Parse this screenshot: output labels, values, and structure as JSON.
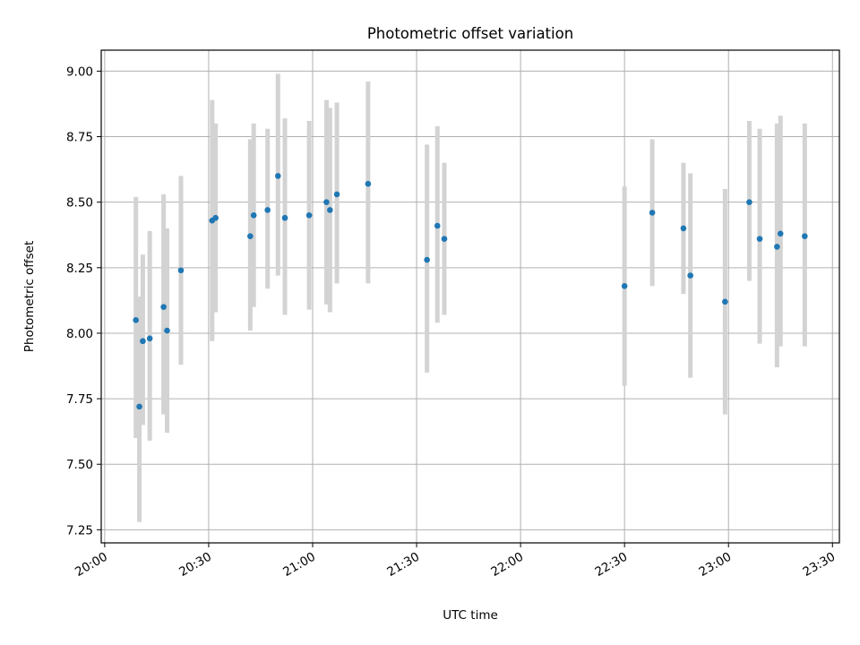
{
  "chart_data": {
    "type": "scatter",
    "title": "Photometric offset variation",
    "xlabel": "UTC time",
    "ylabel": "Photometric offset",
    "x_ticks": [
      "20:00",
      "20:30",
      "21:00",
      "21:30",
      "22:00",
      "22:30",
      "23:00",
      "23:30"
    ],
    "y_ticks": [
      "7.25",
      "7.50",
      "7.75",
      "8.00",
      "8.25",
      "8.50",
      "8.75",
      "9.00"
    ],
    "xlim": [
      "19:59",
      "23:32"
    ],
    "ylim": [
      7.2,
      9.08
    ],
    "grid": true,
    "marker_color": "#1f77b4",
    "errorbar_color": "#d3d3d3",
    "points": [
      {
        "t": "20:09",
        "y": 8.05,
        "lo": 7.6,
        "hi": 8.52
      },
      {
        "t": "20:10",
        "y": 7.72,
        "lo": 7.28,
        "hi": 8.14
      },
      {
        "t": "20:11",
        "y": 7.97,
        "lo": 7.65,
        "hi": 8.3
      },
      {
        "t": "20:13",
        "y": 7.98,
        "lo": 7.59,
        "hi": 8.39
      },
      {
        "t": "20:17",
        "y": 8.1,
        "lo": 7.69,
        "hi": 8.53
      },
      {
        "t": "20:18",
        "y": 8.01,
        "lo": 7.62,
        "hi": 8.4
      },
      {
        "t": "20:22",
        "y": 8.24,
        "lo": 7.88,
        "hi": 8.6
      },
      {
        "t": "20:31",
        "y": 8.43,
        "lo": 7.97,
        "hi": 8.89
      },
      {
        "t": "20:32",
        "y": 8.44,
        "lo": 8.08,
        "hi": 8.8
      },
      {
        "t": "20:42",
        "y": 8.37,
        "lo": 8.01,
        "hi": 8.74
      },
      {
        "t": "20:43",
        "y": 8.45,
        "lo": 8.1,
        "hi": 8.8
      },
      {
        "t": "20:47",
        "y": 8.47,
        "lo": 8.17,
        "hi": 8.78
      },
      {
        "t": "20:50",
        "y": 8.6,
        "lo": 8.22,
        "hi": 8.99
      },
      {
        "t": "20:52",
        "y": 8.44,
        "lo": 8.07,
        "hi": 8.82
      },
      {
        "t": "20:59",
        "y": 8.45,
        "lo": 8.09,
        "hi": 8.81
      },
      {
        "t": "21:04",
        "y": 8.5,
        "lo": 8.11,
        "hi": 8.89
      },
      {
        "t": "21:05",
        "y": 8.47,
        "lo": 8.08,
        "hi": 8.86
      },
      {
        "t": "21:07",
        "y": 8.53,
        "lo": 8.19,
        "hi": 8.88
      },
      {
        "t": "21:16",
        "y": 8.57,
        "lo": 8.19,
        "hi": 8.96
      },
      {
        "t": "21:33",
        "y": 8.28,
        "lo": 7.85,
        "hi": 8.72
      },
      {
        "t": "21:36",
        "y": 8.41,
        "lo": 8.04,
        "hi": 8.79
      },
      {
        "t": "21:38",
        "y": 8.36,
        "lo": 8.07,
        "hi": 8.65
      },
      {
        "t": "22:30",
        "y": 8.18,
        "lo": 7.8,
        "hi": 8.56
      },
      {
        "t": "22:38",
        "y": 8.46,
        "lo": 8.18,
        "hi": 8.74
      },
      {
        "t": "22:47",
        "y": 8.4,
        "lo": 8.15,
        "hi": 8.65
      },
      {
        "t": "22:49",
        "y": 8.22,
        "lo": 7.83,
        "hi": 8.61
      },
      {
        "t": "22:59",
        "y": 8.12,
        "lo": 7.69,
        "hi": 8.55
      },
      {
        "t": "23:06",
        "y": 8.5,
        "lo": 8.2,
        "hi": 8.81
      },
      {
        "t": "23:09",
        "y": 8.36,
        "lo": 7.96,
        "hi": 8.78
      },
      {
        "t": "23:14",
        "y": 8.33,
        "lo": 7.87,
        "hi": 8.8
      },
      {
        "t": "23:15",
        "y": 8.38,
        "lo": 7.95,
        "hi": 8.83
      },
      {
        "t": "23:22",
        "y": 8.37,
        "lo": 7.95,
        "hi": 8.8
      }
    ]
  }
}
